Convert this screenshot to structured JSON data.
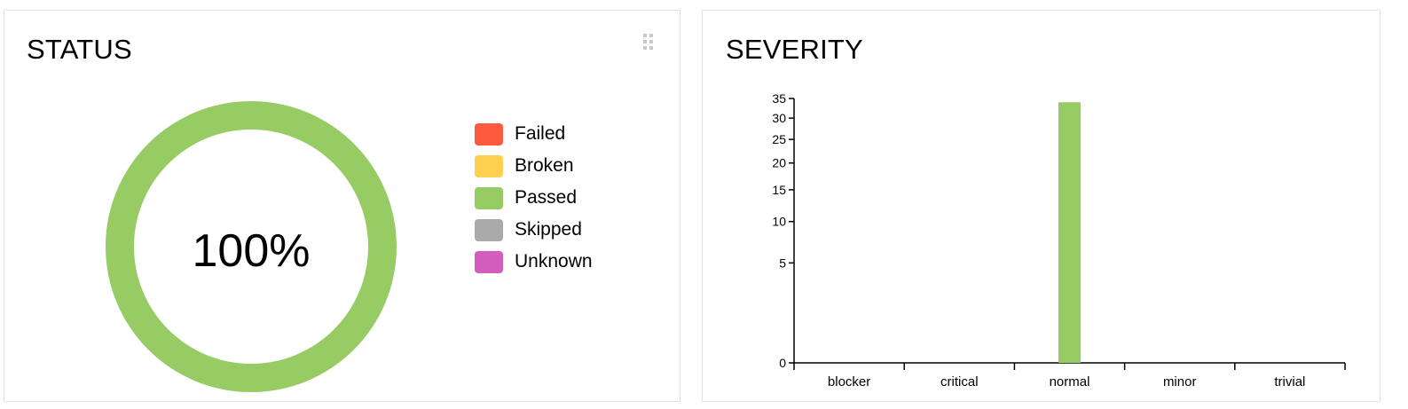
{
  "colors": {
    "failed": "#fd5a3e",
    "broken": "#ffd050",
    "passed": "#97cc64",
    "skipped": "#aaaaaa",
    "unknown": "#d35ebe"
  },
  "status": {
    "title": "STATUS",
    "drag_icon": "drag-handle-icon",
    "percent_label": "100%",
    "legend": [
      {
        "key": "failed",
        "label": "Failed",
        "color": "#fd5a3e",
        "value": 0
      },
      {
        "key": "broken",
        "label": "Broken",
        "color": "#ffd050",
        "value": 0
      },
      {
        "key": "passed",
        "label": "Passed",
        "color": "#97cc64",
        "value": 1
      },
      {
        "key": "skipped",
        "label": "Skipped",
        "color": "#aaaaaa",
        "value": 0
      },
      {
        "key": "unknown",
        "label": "Unknown",
        "color": "#d35ebe",
        "value": 0
      }
    ]
  },
  "severity": {
    "title": "SEVERITY"
  },
  "chart_data": [
    {
      "type": "pie",
      "title": "STATUS",
      "center_label": "100%",
      "categories": [
        "Failed",
        "Broken",
        "Passed",
        "Skipped",
        "Unknown"
      ],
      "values": [
        0,
        0,
        1,
        0,
        0
      ],
      "colors": [
        "#fd5a3e",
        "#ffd050",
        "#97cc64",
        "#aaaaaa",
        "#d35ebe"
      ],
      "legend": "right"
    },
    {
      "type": "bar",
      "title": "SEVERITY",
      "categories": [
        "blocker",
        "critical",
        "normal",
        "minor",
        "trivial"
      ],
      "values": [
        0,
        0,
        34,
        0,
        0
      ],
      "color": "#97cc64",
      "yscale": "sqrt",
      "ylim": [
        0,
        35
      ],
      "yticks": [
        0,
        5,
        10,
        15,
        20,
        25,
        30,
        35
      ],
      "grid": false,
      "xlabel": "",
      "ylabel": ""
    }
  ]
}
